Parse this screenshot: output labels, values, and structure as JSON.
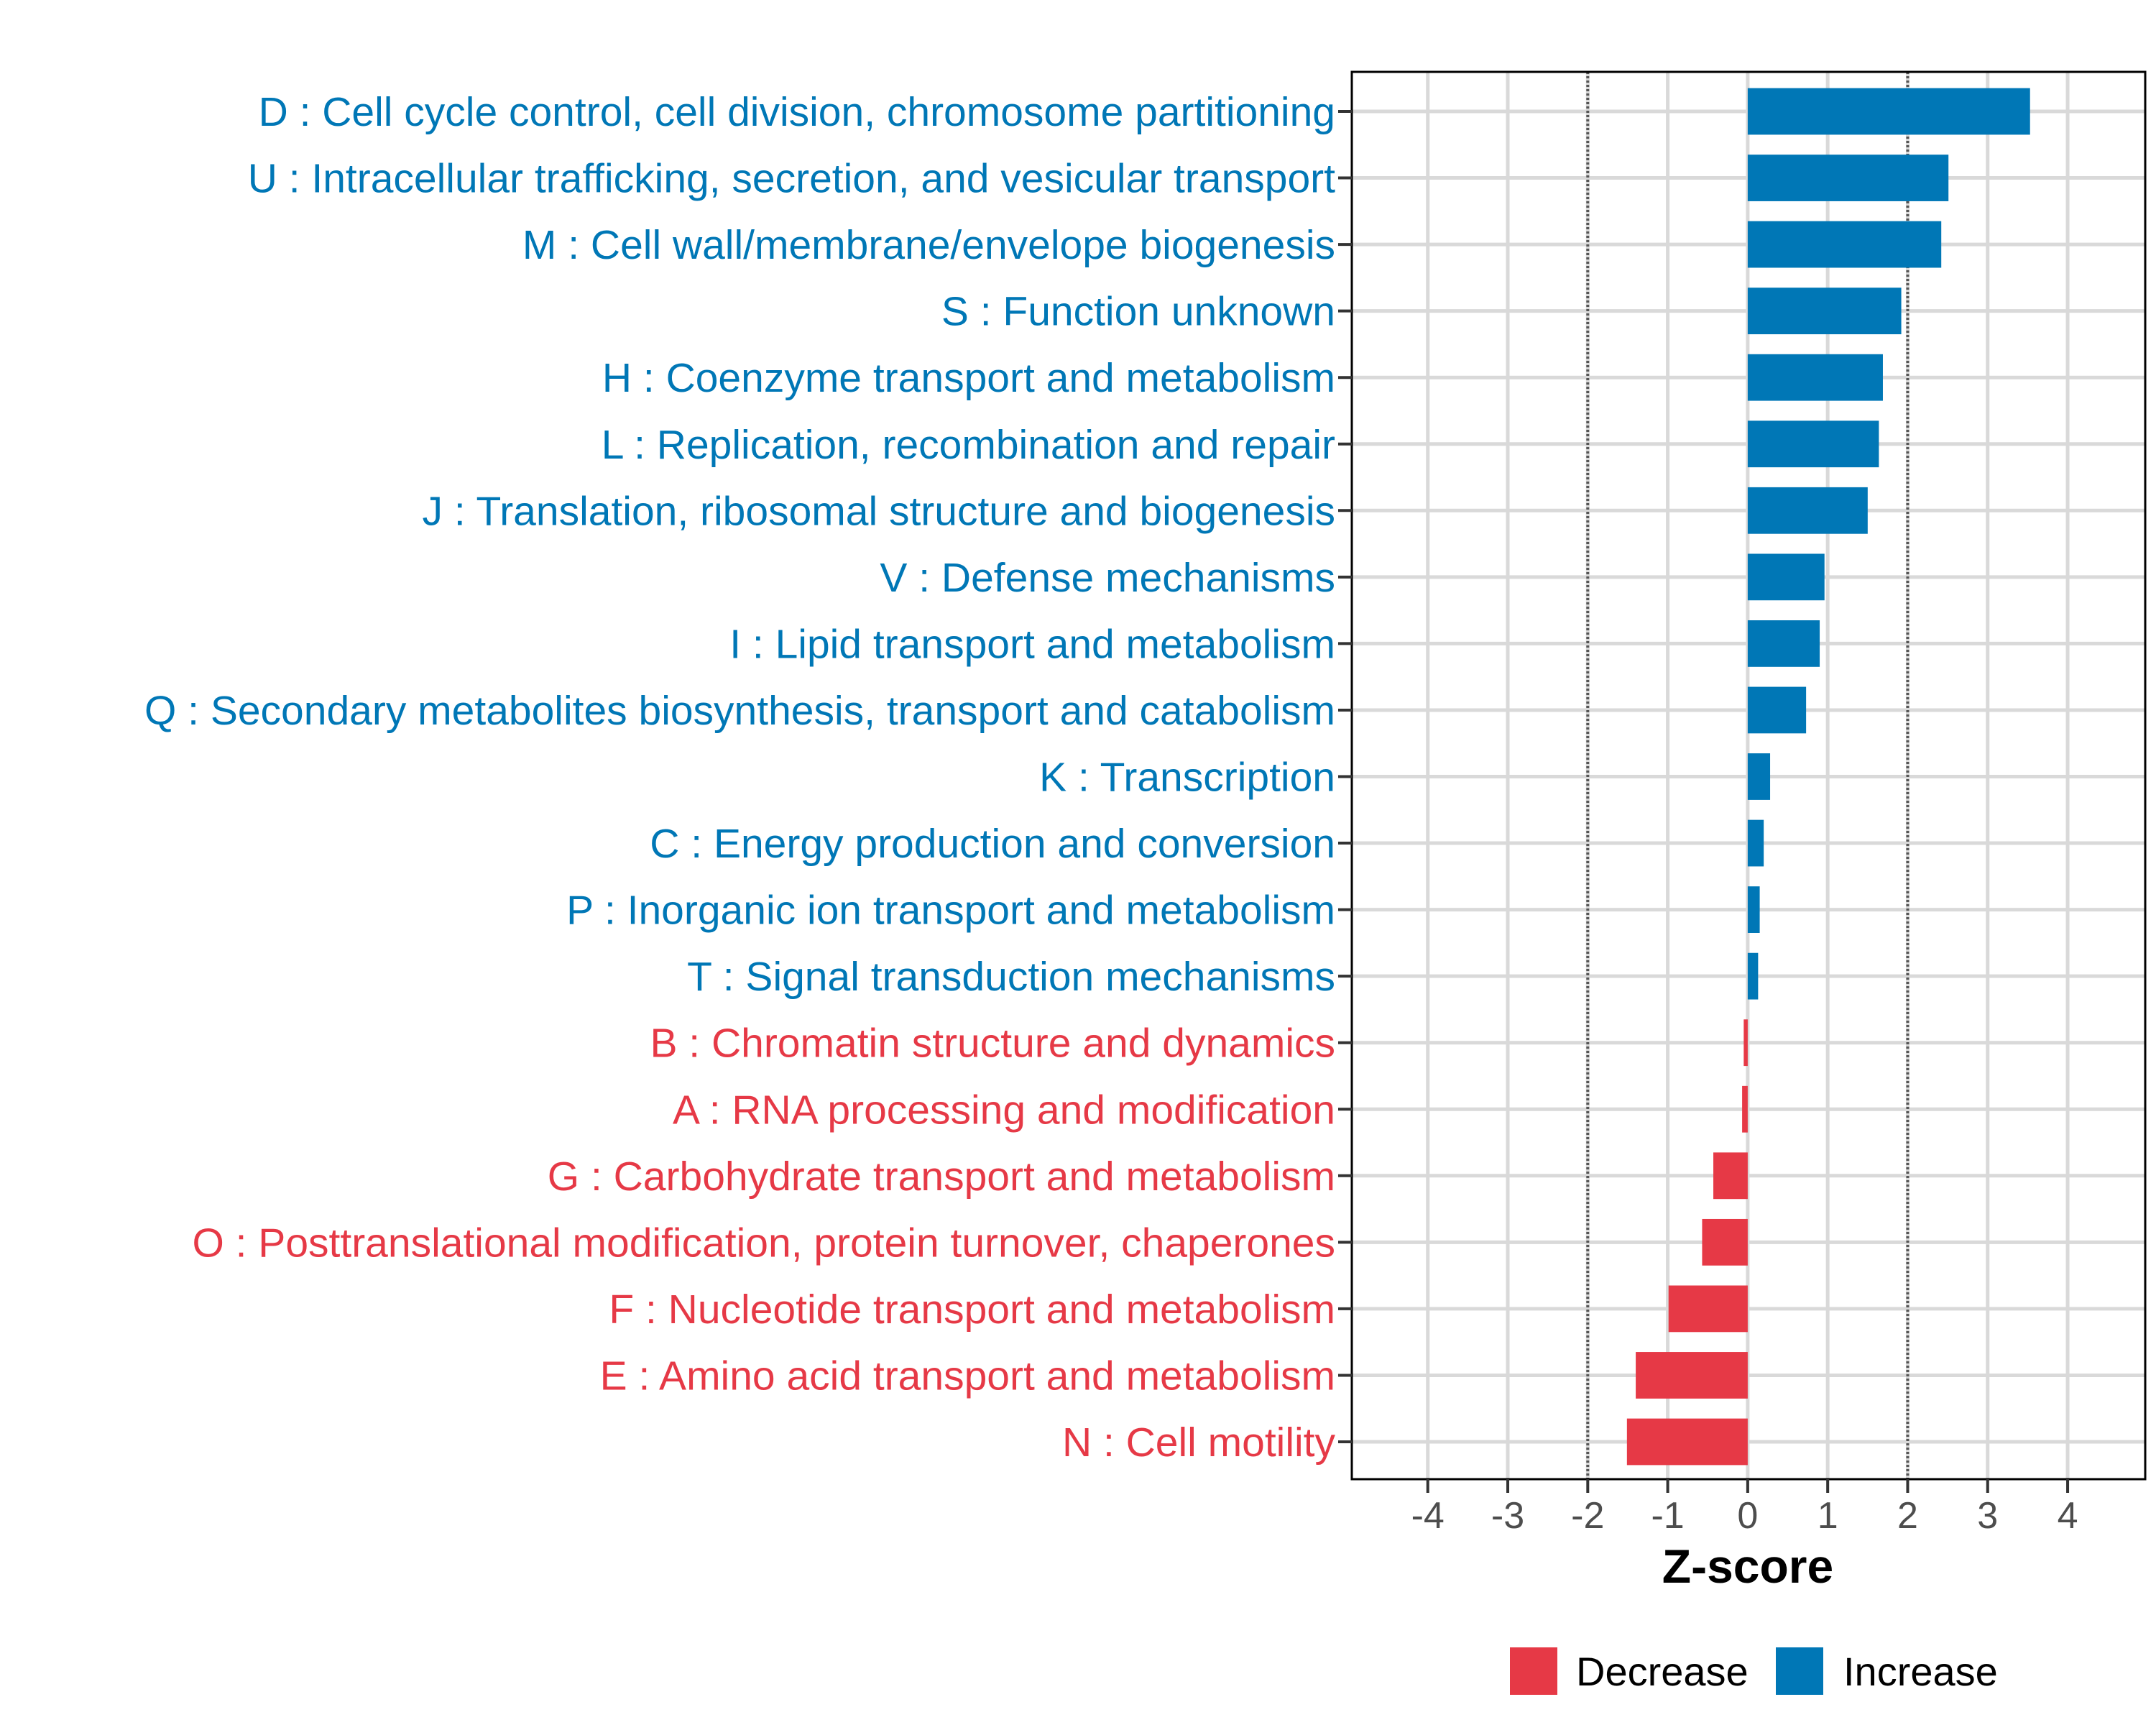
{
  "colors": {
    "Increase": "#0077B6",
    "Decrease": "#E63946",
    "grid": "#D9D9D9",
    "threshold": "#555555",
    "tick_label": "#4D4D4D"
  },
  "chart_data": {
    "type": "bar",
    "orientation": "horizontal",
    "title": "",
    "xlabel": "Z-score",
    "ylabel": "",
    "xlim": [
      -4.95,
      4.97
    ],
    "xticks": [
      -4,
      -3,
      -2,
      -1,
      0,
      1,
      2,
      3,
      4
    ],
    "xtick_labels": [
      "-4",
      "-3",
      "-2",
      "-1",
      "0",
      "1",
      "2",
      "3",
      "4"
    ],
    "threshold_lines": [
      -2,
      2
    ],
    "grid": true,
    "legend": {
      "placement": "bottom",
      "entries": [
        "Decrease",
        "Increase"
      ]
    },
    "categories": [
      "D : Cell cycle control, cell division, chromosome partitioning",
      "U : Intracellular trafficking, secretion, and vesicular transport",
      "M : Cell wall/membrane/envelope biogenesis",
      "S : Function unknown",
      "H : Coenzyme transport and metabolism",
      "L : Replication, recombination and repair",
      "J : Translation, ribosomal structure and biogenesis",
      "V : Defense mechanisms",
      "I : Lipid transport and metabolism",
      "Q : Secondary metabolites biosynthesis, transport and catabolism",
      "K : Transcription",
      "C : Energy production and conversion",
      "P : Inorganic ion transport and metabolism",
      "T : Signal transduction mechanisms",
      "B : Chromatin structure and dynamics",
      "A : RNA processing and modification",
      "G : Carbohydrate transport and metabolism",
      "O : Posttranslational modification, protein turnover, chaperones",
      "F : Nucleotide transport and metabolism",
      "E : Amino acid transport and metabolism",
      "N : Cell motility"
    ],
    "values": [
      3.53,
      2.51,
      2.42,
      1.92,
      1.69,
      1.64,
      1.5,
      0.96,
      0.9,
      0.73,
      0.28,
      0.2,
      0.15,
      0.13,
      -0.05,
      -0.07,
      -0.43,
      -0.57,
      -0.99,
      -1.4,
      -1.51
    ],
    "groups": [
      "Increase",
      "Increase",
      "Increase",
      "Increase",
      "Increase",
      "Increase",
      "Increase",
      "Increase",
      "Increase",
      "Increase",
      "Increase",
      "Increase",
      "Increase",
      "Increase",
      "Decrease",
      "Decrease",
      "Decrease",
      "Decrease",
      "Decrease",
      "Decrease",
      "Decrease"
    ]
  }
}
